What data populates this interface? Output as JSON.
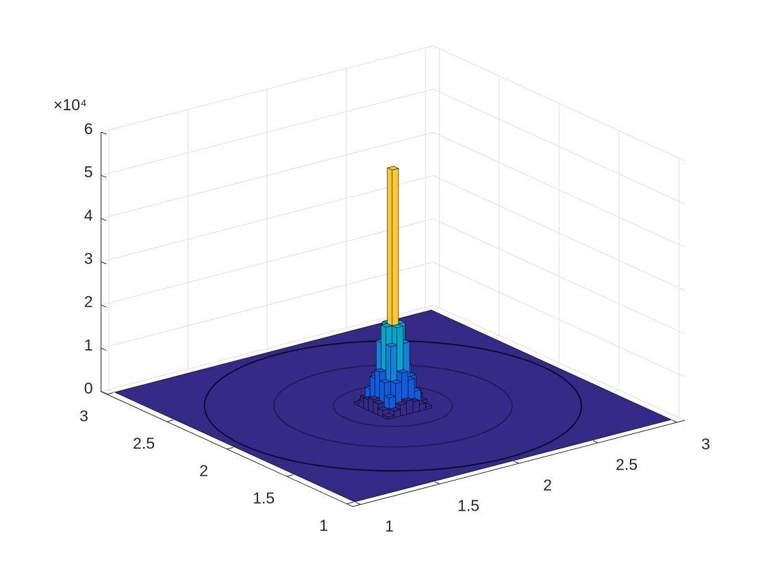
{
  "chart_data": {
    "type": "bar3d",
    "x": [
      1.88,
      1.92,
      1.96,
      2.0,
      2.04,
      2.08,
      2.12
    ],
    "y": [
      1.88,
      1.92,
      1.96,
      2.0,
      2.04,
      2.08,
      2.12
    ],
    "values": [
      [
        500,
        1500,
        2500,
        3000,
        2500,
        1500,
        500
      ],
      [
        1500,
        4000,
        7000,
        9000,
        7000,
        4000,
        1500
      ],
      [
        2500,
        7000,
        15000,
        19000,
        15000,
        7000,
        2500
      ],
      [
        3000,
        9000,
        19000,
        55000,
        19000,
        9000,
        3000
      ],
      [
        2500,
        7000,
        15000,
        19000,
        15000,
        7000,
        2500
      ],
      [
        1500,
        4000,
        7000,
        9000,
        7000,
        4000,
        1500
      ],
      [
        500,
        1500,
        2500,
        3000,
        2500,
        1500,
        500
      ]
    ],
    "xlim": [
      0.95,
      3.05
    ],
    "ylim": [
      0.95,
      3.05
    ],
    "zlim": [
      0,
      60000
    ],
    "xticks": [
      1,
      1.5,
      2,
      2.5,
      3
    ],
    "yticks": [
      1,
      1.5,
      2,
      2.5,
      3
    ],
    "zticks": [
      {
        "value": 0,
        "label": "0"
      },
      {
        "value": 10000,
        "label": "1"
      },
      {
        "value": 20000,
        "label": "2"
      },
      {
        "value": 30000,
        "label": "3"
      },
      {
        "value": 40000,
        "label": "4"
      },
      {
        "value": 50000,
        "label": "5"
      },
      {
        "value": 60000,
        "label": "6"
      }
    ],
    "z_exponent_label": "×10⁴",
    "grid": true,
    "colormap": [
      "#352a87",
      "#0f5cdd",
      "#1481d6",
      "#06a4ca",
      "#2eb7a4",
      "#87bf77",
      "#d1bb59",
      "#fec832",
      "#f9fb0e"
    ]
  }
}
